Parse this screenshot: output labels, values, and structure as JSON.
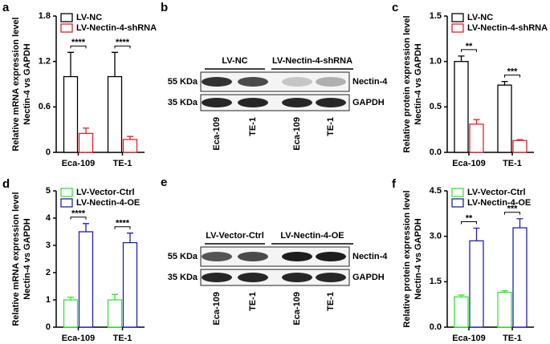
{
  "chart_data": [
    {
      "type": "bar",
      "panel": "a",
      "y_label": [
        "Relative mRNA expression level",
        "Nectin-4 vs GAPDH"
      ],
      "categories": [
        "Eca-109",
        "TE-1"
      ],
      "series": [
        {
          "name": "LV-NC",
          "color": "#000000",
          "values": [
            1.0,
            1.0
          ],
          "errors": [
            0.32,
            0.32
          ]
        },
        {
          "name": "LV-Nectin-4-shRNA",
          "color": "#e8202a",
          "values": [
            0.25,
            0.17
          ],
          "errors": [
            0.07,
            0.04
          ]
        }
      ],
      "significance": [
        "****",
        "****"
      ],
      "ylim": [
        0,
        1.8
      ],
      "yticks": [
        0,
        0.6,
        1.2,
        1.8
      ]
    },
    {
      "type": "bar",
      "panel": "c",
      "y_label": [
        "Relative protein expression level",
        "Nectin-4 vs GAPDH"
      ],
      "categories": [
        "Eca-109",
        "TE-1"
      ],
      "series": [
        {
          "name": "LV-NC",
          "color": "#000000",
          "values": [
            1.0,
            0.74
          ],
          "errors": [
            0.06,
            0.04
          ]
        },
        {
          "name": "LV-Nectin-4-shRNA",
          "color": "#e8202a",
          "values": [
            0.31,
            0.13
          ],
          "errors": [
            0.05,
            0.01
          ]
        }
      ],
      "significance": [
        "**",
        "***"
      ],
      "ylim": [
        0,
        1.5
      ],
      "yticks": [
        {
          "value": 0,
          "label": "0.0"
        },
        0.5,
        {
          "value": 1,
          "label": "1.0"
        },
        1.5
      ]
    },
    {
      "type": "bar",
      "panel": "d",
      "y_label": [
        "Relative mRNA expression level",
        "Nectin-4 vs GAPDH"
      ],
      "categories": [
        "Eca-109",
        "TE-1"
      ],
      "series": [
        {
          "name": "LV-Vector-Ctrl",
          "color": "#2ee82e",
          "values": [
            1.0,
            1.0
          ],
          "errors": [
            0.1,
            0.2
          ]
        },
        {
          "name": "LV-Nectin-4-OE",
          "color": "#2020b0",
          "values": [
            3.5,
            3.1
          ],
          "errors": [
            0.3,
            0.35
          ]
        }
      ],
      "significance": [
        "****",
        "****"
      ],
      "ylim": [
        0,
        5
      ],
      "yticks": [
        0,
        1,
        2,
        3,
        4,
        5
      ]
    },
    {
      "type": "bar",
      "panel": "f",
      "y_label": [
        "Relative protein expression level",
        "Nectin-4 vs GAPDH"
      ],
      "categories": [
        "Eca-109",
        "TE-1"
      ],
      "series": [
        {
          "name": "LV-Vector-Ctrl",
          "color": "#2ee82e",
          "values": [
            1.0,
            1.15
          ],
          "errors": [
            0.06,
            0.05
          ]
        },
        {
          "name": "LV-Nectin-4-OE",
          "color": "#2020b0",
          "values": [
            2.85,
            3.28
          ],
          "errors": [
            0.42,
            0.3
          ]
        }
      ],
      "significance": [
        "**",
        "***"
      ],
      "ylim": [
        0,
        4.5
      ],
      "yticks": [
        {
          "value": 0,
          "label": "0.0"
        },
        1.5,
        {
          "value": 3,
          "label": "3.0"
        },
        4.5
      ]
    }
  ],
  "blots": [
    {
      "panel": "b",
      "groups": [
        "LV-NC",
        "LV-Nectin-4-shRNA"
      ],
      "markers": [
        "55 KDa",
        "35 KDa"
      ],
      "bands": [
        "Nectin-4",
        "GAPDH"
      ],
      "lanes": [
        "Eca-109",
        "TE-1",
        "Eca-109",
        "TE-1"
      ]
    },
    {
      "panel": "e",
      "groups": [
        "LV-Vector-Ctrl",
        "LV-Nectin-4-OE"
      ],
      "markers": [
        "55 KDa",
        "35 KDa"
      ],
      "bands": [
        "Nectin-4",
        "GAPDH"
      ],
      "lanes": [
        "Eca-109",
        "TE-1",
        "Eca-109",
        "TE-1"
      ]
    }
  ]
}
